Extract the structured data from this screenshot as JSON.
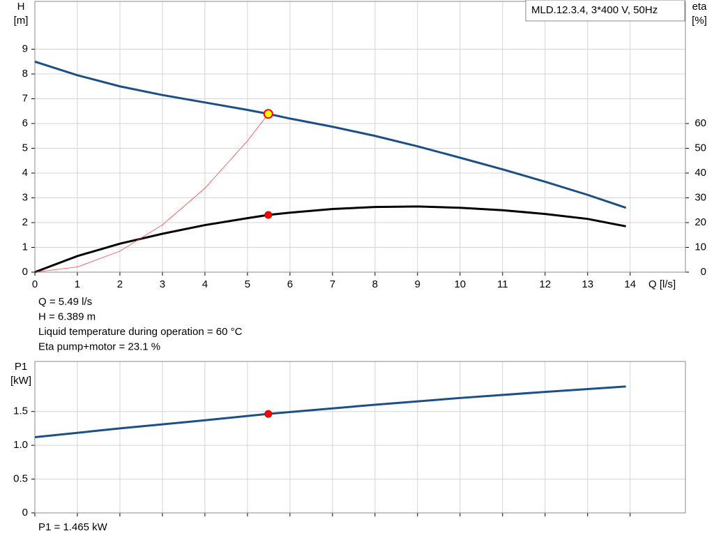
{
  "chart_data": [
    {
      "type": "line",
      "label_box": "MLD.12.3.4, 3*400 V, 50Hz",
      "ylabel": "H",
      "yunit": "[m]",
      "y2label": "eta",
      "y2unit": "[%]",
      "xlabel": "Q [l/s]",
      "xlim": [
        0,
        15.3
      ],
      "xticks": [
        0,
        1,
        2,
        3,
        4,
        5,
        6,
        7,
        8,
        9,
        10,
        11,
        12,
        13,
        14
      ],
      "ylim": [
        0,
        10.93
      ],
      "yticks": [
        0,
        1,
        2,
        3,
        4,
        5,
        6,
        7,
        8,
        9
      ],
      "y2lim": [
        0,
        109.3
      ],
      "y2ticks": [
        0,
        10,
        20,
        30,
        40,
        50,
        60
      ],
      "grid": true,
      "series": [
        {
          "name": "H",
          "color": "#1b4f85",
          "width": 3,
          "x": [
            0,
            1,
            2,
            3,
            4,
            5,
            5.49,
            6,
            7,
            8,
            9,
            10,
            11,
            12,
            13,
            13.9
          ],
          "values": [
            8.5,
            7.95,
            7.5,
            7.15,
            6.85,
            6.55,
            6.389,
            6.2,
            5.87,
            5.5,
            5.08,
            4.62,
            4.15,
            3.65,
            3.12,
            2.6
          ]
        },
        {
          "name": "eta",
          "axis": "y2",
          "color": "#000000",
          "width": 3,
          "x": [
            0,
            1,
            2,
            3,
            4,
            5,
            5.49,
            6,
            7,
            8,
            9,
            10,
            11,
            12,
            13,
            13.9
          ],
          "values": [
            0,
            6.5,
            11.5,
            15.5,
            19,
            21.8,
            23.1,
            24,
            25.5,
            26.3,
            26.5,
            26,
            25,
            23.5,
            21.5,
            18.5
          ]
        },
        {
          "color": "#ff4040",
          "width": 0.8,
          "x": [
            0,
            1,
            2,
            3,
            4,
            5,
            5.49
          ],
          "values": [
            0,
            0.21,
            0.85,
            1.91,
            3.39,
            5.3,
            6.389
          ]
        }
      ],
      "operating_point": {
        "x": 5.49,
        "h": 6.389,
        "eta": 23.1
      },
      "annotations": [
        "Q = 5.49 l/s",
        "H = 6.389 m",
        "Liquid temperature during operation = 60 °C",
        "Eta pump+motor = 23.1 %"
      ]
    },
    {
      "type": "line",
      "ylabel": "P1",
      "yunit": "[kW]",
      "xlim": [
        0,
        15.3
      ],
      "xticks": [
        0,
        1,
        2,
        3,
        4,
        5,
        6,
        7,
        8,
        9,
        10,
        11,
        12,
        13,
        14
      ],
      "xtick_labels": false,
      "ylim": [
        0,
        2.24
      ],
      "yticks": [
        0,
        0.5,
        {
          "value": 1,
          "label": "1.0"
        },
        1.5
      ],
      "grid": true,
      "series": [
        {
          "name": "P1",
          "color": "#1b4f85",
          "width": 3,
          "x": [
            0,
            2,
            4,
            5.49,
            8,
            10,
            12,
            13.9
          ],
          "values": [
            1.12,
            1.25,
            1.37,
            1.465,
            1.6,
            1.7,
            1.79,
            1.87
          ]
        }
      ],
      "operating_point": {
        "x": 5.49,
        "p1": 1.465
      },
      "annotations": [
        "P1 = 1.465 kW"
      ]
    }
  ]
}
